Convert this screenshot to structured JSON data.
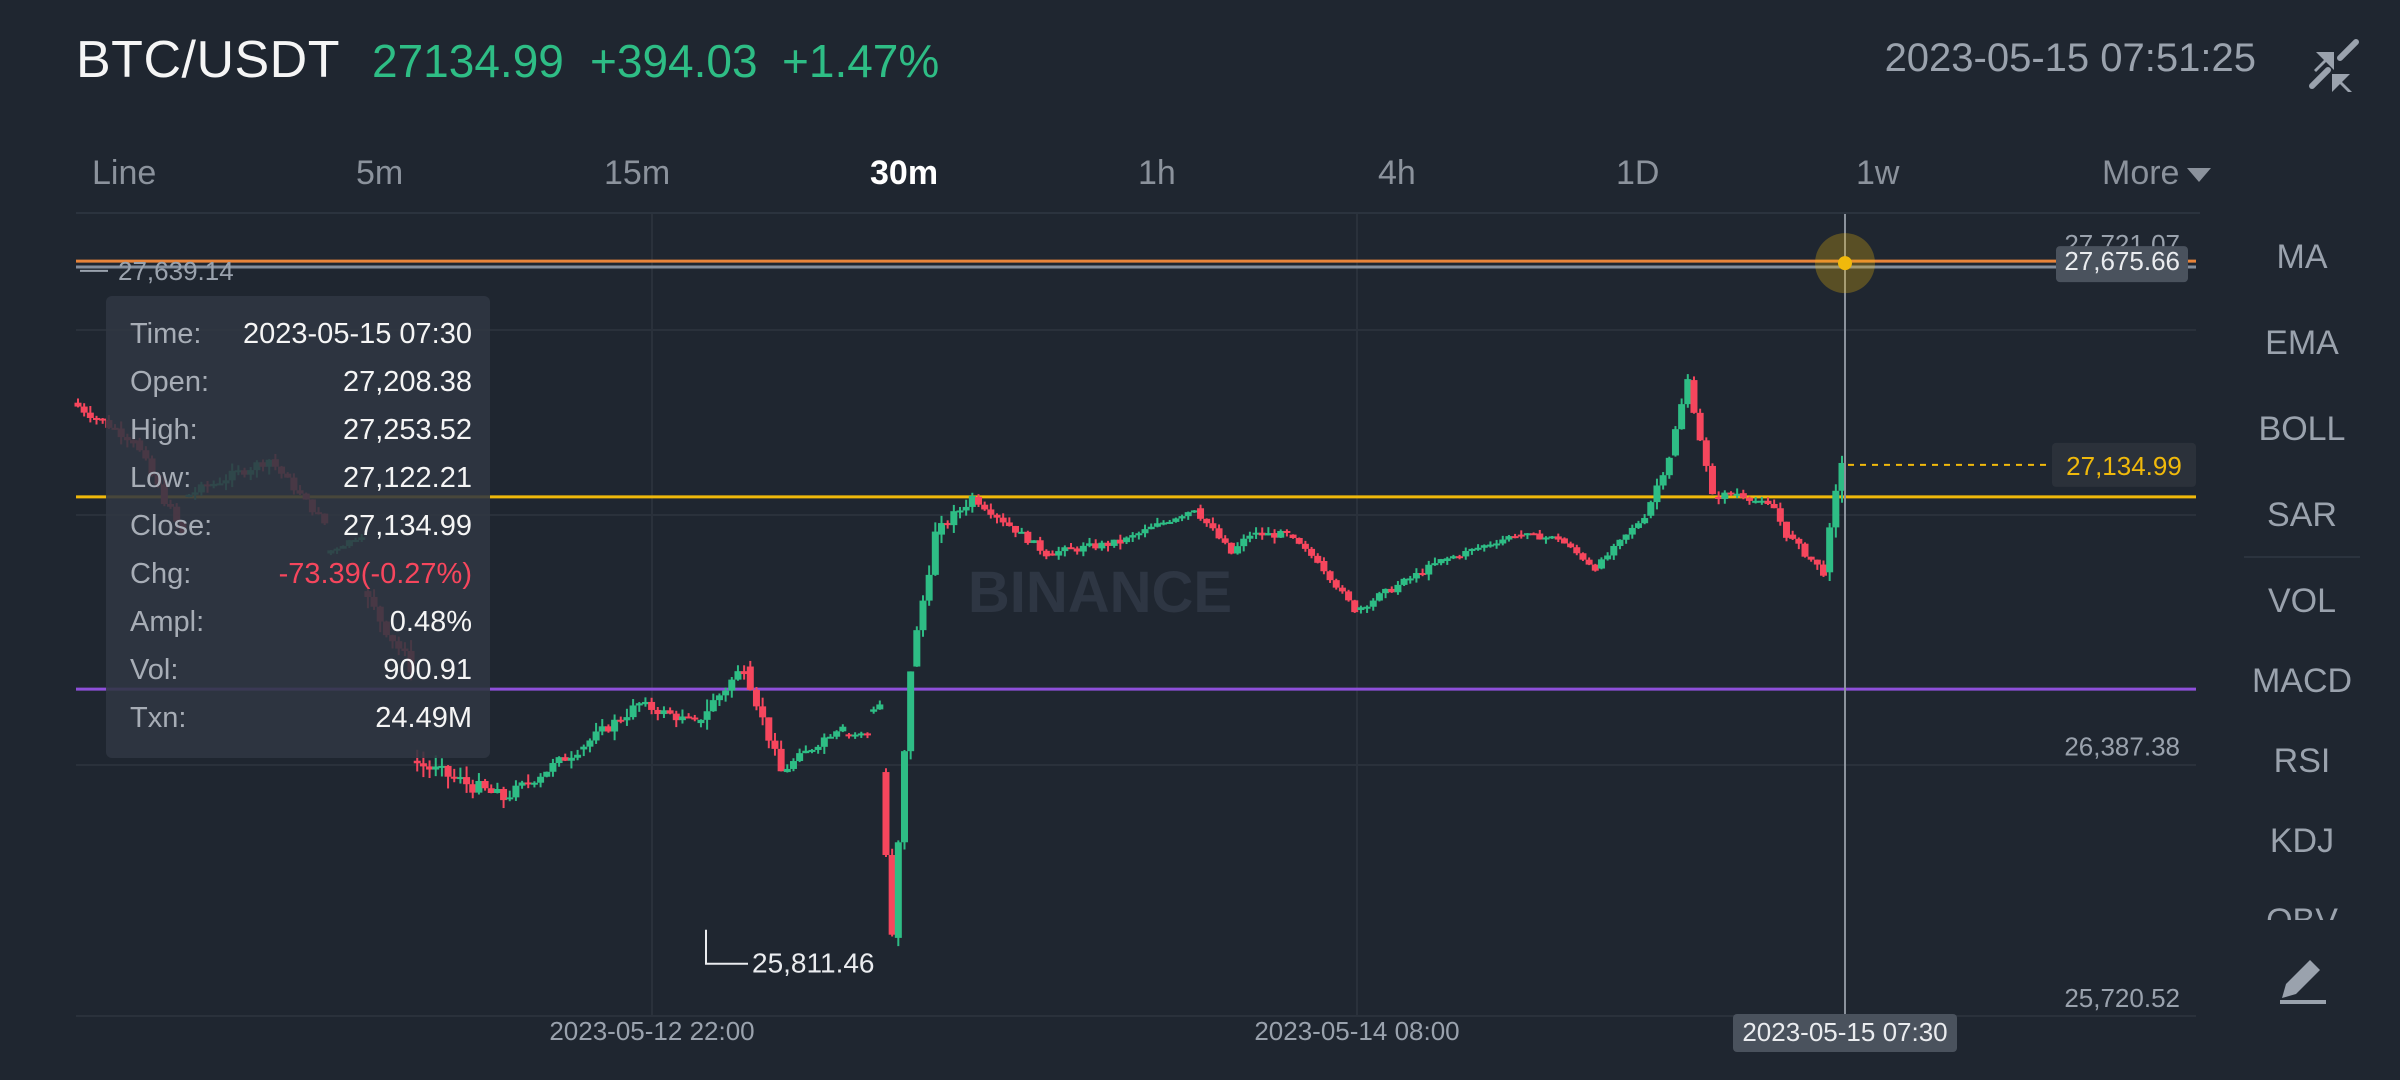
{
  "header": {
    "pair": "BTC/USDT",
    "last_price": "27134.99",
    "change": "+394.03",
    "change_pct": "+1.47%",
    "timestamp": "2023-05-15 07:51:25",
    "collapse_icon": "collapse-arrows-icon"
  },
  "tabs": [
    {
      "label": "Line",
      "active": false
    },
    {
      "label": "5m",
      "active": false
    },
    {
      "label": "15m",
      "active": false
    },
    {
      "label": "30m",
      "active": true
    },
    {
      "label": "1h",
      "active": false
    },
    {
      "label": "4h",
      "active": false
    },
    {
      "label": "1D",
      "active": false
    },
    {
      "label": "1w",
      "active": false
    },
    {
      "label": "More",
      "active": false
    }
  ],
  "indicators": [
    "MA",
    "EMA",
    "BOLL",
    "SAR",
    "VOL",
    "MACD",
    "RSI",
    "KDJ",
    "OBV"
  ],
  "draw_tool_icon": "pencil-icon",
  "watermark": "BINANCE",
  "tooltip": {
    "rows": [
      {
        "label": "Time:",
        "value": "2023-05-15 07:30"
      },
      {
        "label": "Open:",
        "value": "27,208.38"
      },
      {
        "label": "High:",
        "value": "27,253.52"
      },
      {
        "label": "Low:",
        "value": "27,122.21"
      },
      {
        "label": "Close:",
        "value": "27,134.99"
      },
      {
        "label": "Chg:",
        "value": "-73.39(-0.27%)",
        "negative": true
      },
      {
        "label": "Ampl:",
        "value": "0.48%"
      },
      {
        "label": "Vol:",
        "value": "900.91"
      },
      {
        "label": "Txn:",
        "value": "24.49M"
      }
    ]
  },
  "price_labels": {
    "top": "27,721.07",
    "crosshair": "27,675.66",
    "current": "27,134.99",
    "lower": "26,387.38",
    "bottom": "25,720.52",
    "max_marker": "27,639.14",
    "min_marker": "25,811.46"
  },
  "time_labels": [
    "2023-05-12 22:00",
    "2023-05-14 08:00"
  ],
  "crosshair_time": "2023-05-15 07:30",
  "colors": {
    "up": "#2ebd85",
    "down": "#f6465d",
    "background": "#1f2630",
    "orange_line": "#e8843a",
    "yellow_line": "#f0b90b",
    "purple_line": "#8e4fd9",
    "current_price": "#f0b90b"
  },
  "chart_data": {
    "type": "candlestick",
    "y_range": [
      25720.52,
      27721.07
    ],
    "horizontal_lines": [
      {
        "price": 27675.66,
        "color": "#e8843a"
      },
      {
        "price": 27660,
        "color": "#848e9c"
      },
      {
        "price": 27050,
        "color": "#f0b90b"
      },
      {
        "price": 26540,
        "color": "#8e4fd9"
      }
    ],
    "current_price": 27134.99,
    "max_price": 27639.14,
    "min_price": 25811.46,
    "crosshair_price": 27675.66,
    "segments": [
      [
        27300,
        27200,
        10,
        25
      ],
      [
        27200,
        26950,
        8,
        30
      ],
      [
        27050,
        27150,
        14,
        26
      ],
      [
        27150,
        26980,
        9,
        20
      ],
      [
        26900,
        26950,
        6,
        15
      ],
      [
        26800,
        26600,
        8,
        40
      ],
      [
        26350,
        26250,
        15,
        40
      ],
      [
        26250,
        26380,
        12,
        30
      ],
      [
        26380,
        26500,
        10,
        30
      ],
      [
        26500,
        26450,
        9,
        25
      ],
      [
        26450,
        26600,
        8,
        40
      ],
      [
        26600,
        26320,
        6,
        30
      ],
      [
        26320,
        26450,
        10,
        25
      ],
      [
        26420,
        26420,
        4,
        15
      ],
      [
        26480,
        26500,
        2,
        15
      ],
      [
        26320,
        25880,
        2,
        30
      ],
      [
        25880,
        26600,
        3,
        60
      ],
      [
        26600,
        26950,
        4,
        40
      ],
      [
        26950,
        27050,
        6,
        30
      ],
      [
        27050,
        26900,
        12,
        20
      ],
      [
        26900,
        26930,
        12,
        20
      ],
      [
        26930,
        27020,
        12,
        18
      ],
      [
        27020,
        26900,
        6,
        20
      ],
      [
        26900,
        26950,
        3,
        20
      ],
      [
        26950,
        26950,
        6,
        20
      ],
      [
        26950,
        26880,
        5,
        12
      ],
      [
        26880,
        26750,
        6,
        15
      ],
      [
        26750,
        26880,
        14,
        20
      ],
      [
        26880,
        26950,
        12,
        15
      ],
      [
        26950,
        26940,
        7,
        15
      ],
      [
        26940,
        26860,
        6,
        12
      ],
      [
        26860,
        27000,
        8,
        15
      ],
      [
        27000,
        27160,
        4,
        25
      ],
      [
        27160,
        27360,
        3,
        20
      ],
      [
        27360,
        27050,
        4,
        20
      ],
      [
        27050,
        27060,
        4,
        20
      ],
      [
        27060,
        27020,
        6,
        15
      ],
      [
        27020,
        26950,
        2,
        20
      ],
      [
        26950,
        26850,
        6,
        20
      ],
      [
        26850,
        27150,
        3,
        40
      ]
    ]
  }
}
